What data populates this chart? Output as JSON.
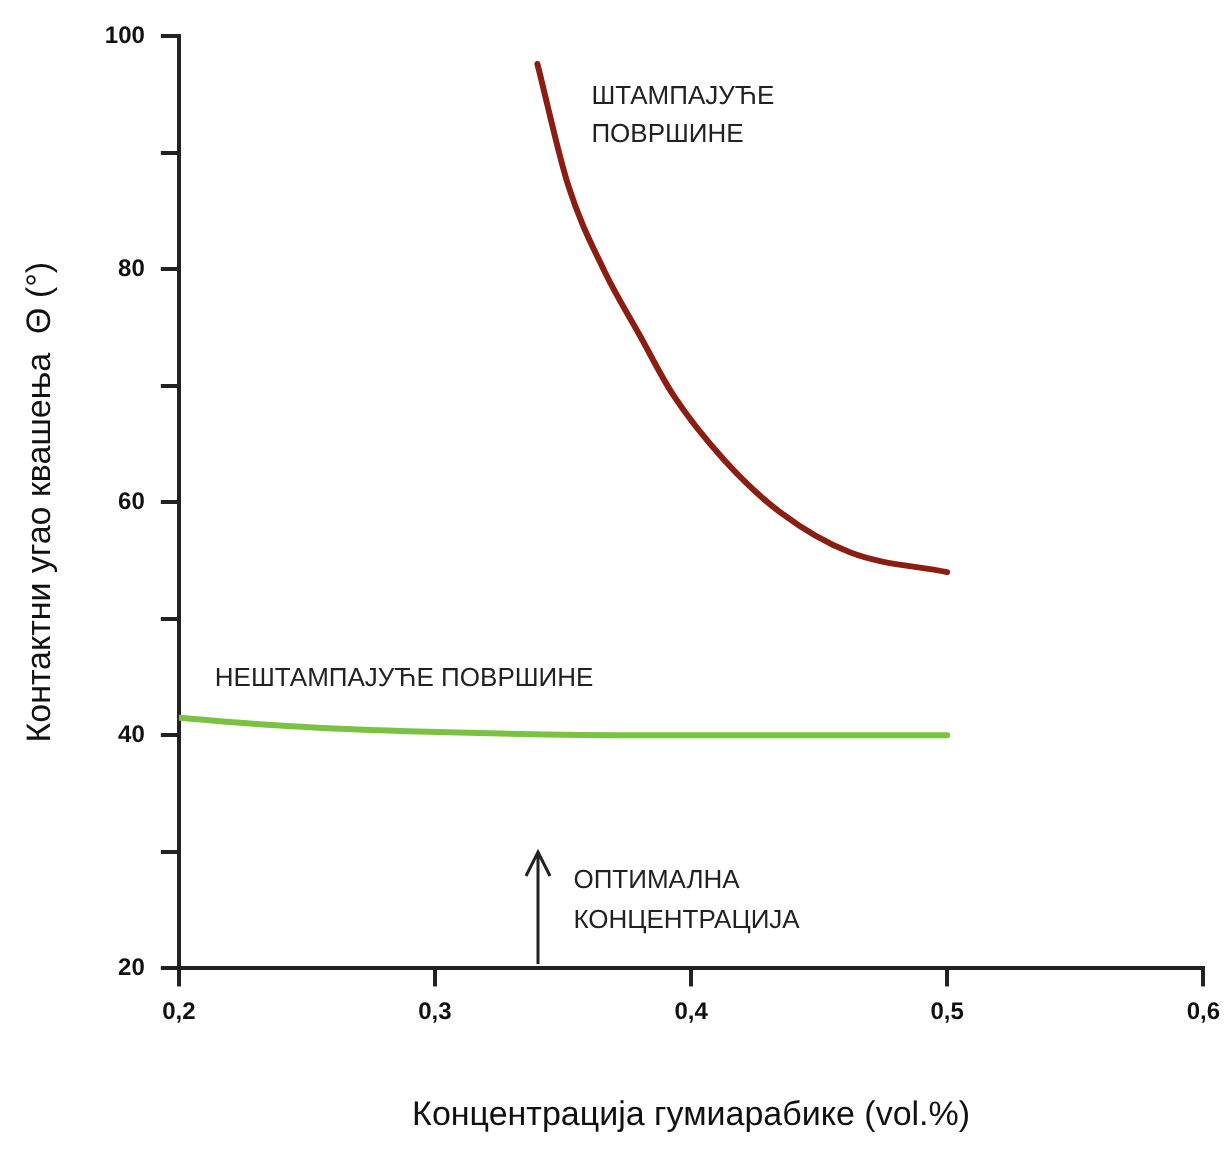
{
  "chart_data": {
    "type": "line",
    "xlabel": "Концентрација гумиарабике (vol.%)",
    "ylabel": "Контактни угао квашења  Θ (°)",
    "xlim": [
      0.2,
      0.6
    ],
    "xticks": [
      {
        "value": 0.2,
        "label": "0,2"
      },
      {
        "value": 0.3,
        "label": "0,3"
      },
      {
        "value": 0.4,
        "label": "0,4"
      },
      {
        "value": 0.5,
        "label": "0,5"
      },
      {
        "value": 0.6,
        "label": "0,6"
      }
    ],
    "ylim": [
      20,
      100
    ],
    "yticks": [
      20,
      {
        "value": 30,
        "label": null
      },
      40,
      {
        "value": 50,
        "label": null
      },
      60,
      {
        "value": 70,
        "label": null
      },
      80,
      {
        "value": 90,
        "label": null
      },
      100
    ],
    "grid": false,
    "legend": false,
    "marker": "none",
    "line_style": "solid",
    "series": [
      {
        "name": "ШТАМПАЈУЋЕ ПОВРШИНЕ",
        "color": "#8b1e12",
        "x": [
          0.34,
          0.352,
          0.366,
          0.38,
          0.393,
          0.413,
          0.435,
          0.462,
          0.5
        ],
        "values": [
          97.6,
          87.2,
          79.9,
          74.3,
          69.2,
          63.6,
          59.1,
          55.7,
          54
        ]
      },
      {
        "name": "НЕШТАМПАЈУЋЕ ПОВРШИНЕ",
        "color": "#7cc242",
        "x": [
          0.2,
          0.242,
          0.297,
          0.385,
          0.5
        ],
        "values": [
          41.5,
          40.8,
          40.3,
          40,
          40
        ]
      }
    ],
    "annotations": [
      "ОПТИМАЛНА КОНЦЕНТРАЦИЈА"
    ]
  }
}
